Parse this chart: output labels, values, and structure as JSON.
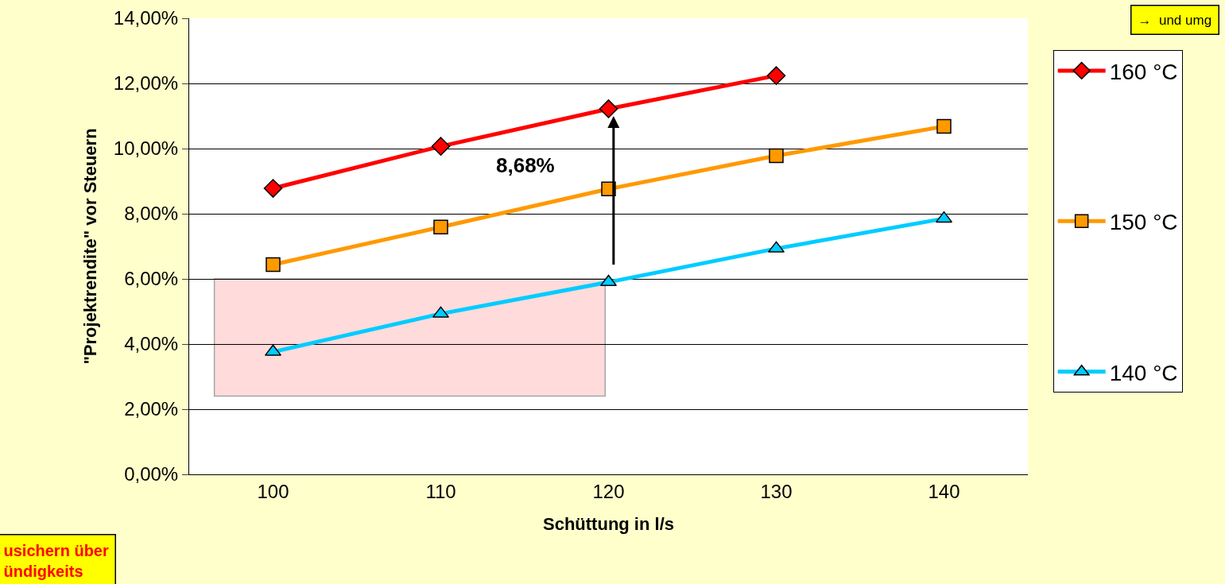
{
  "chart_data": {
    "type": "line",
    "xlabel": "Schüttung in l/s",
    "ylabel": "\"Projektrendite\" vor Steuern",
    "categories": [
      "100",
      "110",
      "120",
      "130",
      "140"
    ],
    "series": [
      {
        "name": "160 °C",
        "color": "#ff0000",
        "marker": "diamond",
        "values": [
          8.78,
          10.07,
          11.22,
          12.24,
          null
        ]
      },
      {
        "name": "150 °C",
        "color": "#ff9900",
        "marker": "square",
        "values": [
          6.44,
          7.59,
          8.76,
          9.78,
          10.68
        ]
      },
      {
        "name": "140 °C",
        "color": "#00ccff",
        "marker": "triangle",
        "values": [
          3.76,
          4.93,
          5.9,
          6.93,
          7.85
        ]
      }
    ],
    "ylim": [
      0,
      14
    ],
    "yticks": [
      {
        "value": 0,
        "label": "0,00%"
      },
      {
        "value": 2,
        "label": "2,00%"
      },
      {
        "value": 4,
        "label": "4,00%"
      },
      {
        "value": 6,
        "label": "6,00%"
      },
      {
        "value": 8,
        "label": "8,00%"
      },
      {
        "value": 10,
        "label": "10,00%"
      },
      {
        "value": 12,
        "label": "12,00%"
      },
      {
        "value": 14,
        "label": "14,00%"
      }
    ],
    "grid": "y",
    "legend": "right",
    "line_style": "solid",
    "bands": [
      {
        "axis": "y",
        "from": 2.4,
        "to": 6,
        "color": "#ff9999"
      }
    ],
    "annotations": [
      "8,68%",
      "→  und umg",
      "usichern über\nündigkeits"
    ]
  }
}
